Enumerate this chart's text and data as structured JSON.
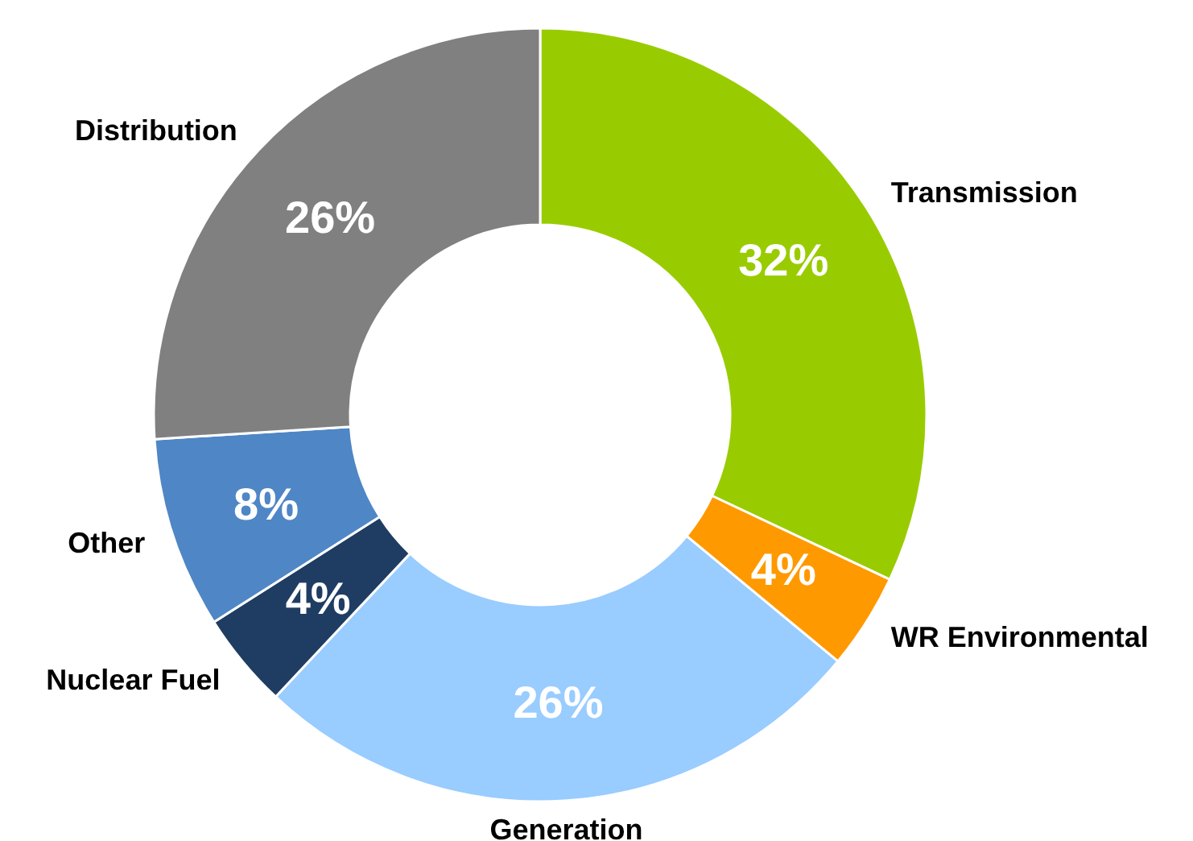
{
  "chart_data": {
    "type": "donut",
    "categories": [
      "Transmission",
      "WR Environmental",
      "Generation",
      "Nuclear Fuel",
      "Other",
      "Distribution"
    ],
    "values": [
      32,
      4,
      26,
      4,
      8,
      26
    ],
    "value_labels": [
      "32%",
      "4%",
      "26%",
      "4%",
      "8%",
      "26%"
    ],
    "colors": [
      "#99cc00",
      "#ff9900",
      "#99ccff",
      "#1f3d63",
      "#4f86c6",
      "#808080"
    ],
    "legend": false
  }
}
